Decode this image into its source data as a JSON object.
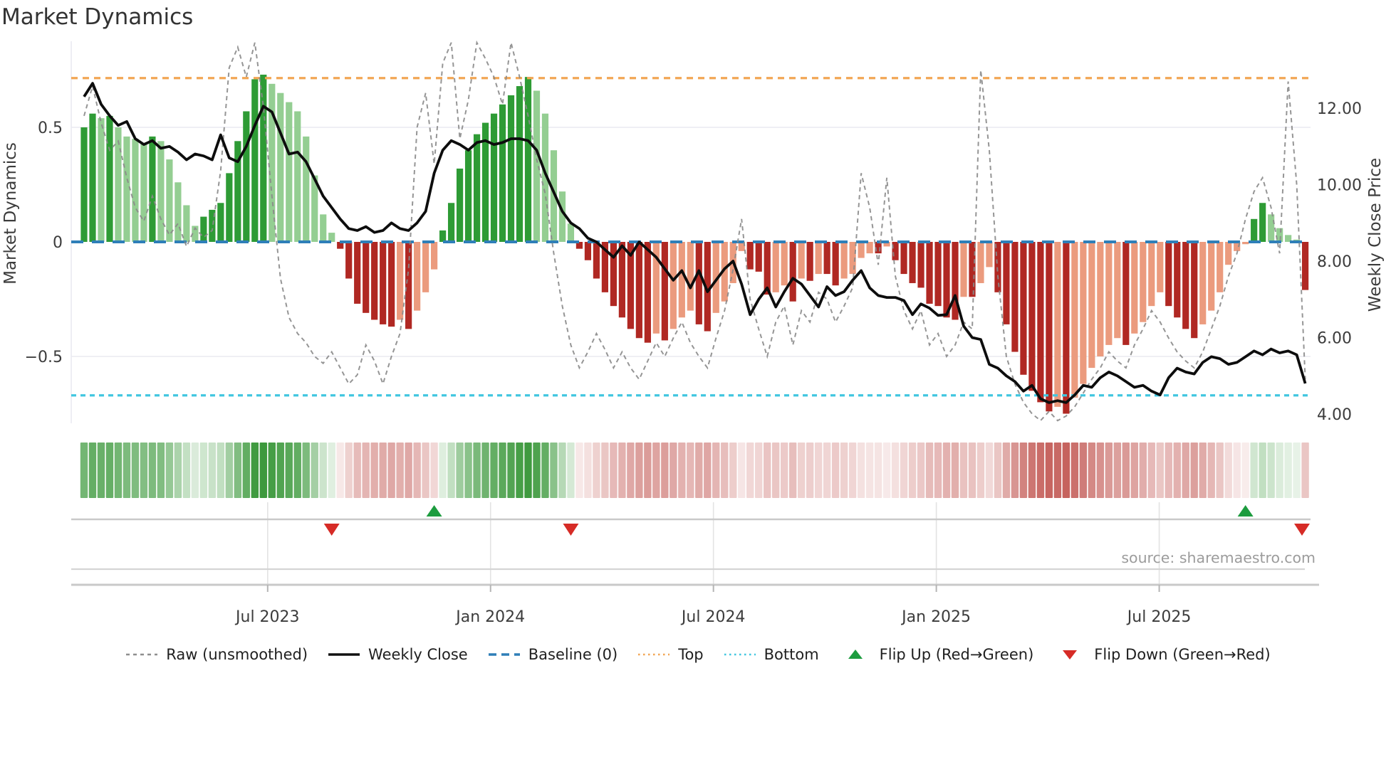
{
  "title": "Market Dynamics",
  "source_text": "source: sharemaestro.com",
  "axes": {
    "left": {
      "label": "Market Dynamics",
      "ticks": [
        {
          "label": "0.5",
          "value": 0.5
        },
        {
          "label": "0",
          "value": 0
        },
        {
          "label": "−0.5",
          "value": -0.5
        }
      ]
    },
    "right": {
      "label": "Weekly Close Price",
      "ticks": [
        {
          "label": "12.00",
          "value": 12
        },
        {
          "label": "10.00",
          "value": 10
        },
        {
          "label": "8.00",
          "value": 8
        },
        {
          "label": "6.00",
          "value": 6
        },
        {
          "label": "4.00",
          "value": 4
        }
      ]
    },
    "x": {
      "ticks": [
        {
          "label": "Jul 2023",
          "week": 21.5
        },
        {
          "label": "Jan 2024",
          "week": 47.6
        },
        {
          "label": "Jul 2024",
          "week": 73.7
        },
        {
          "label": "Jan 2025",
          "week": 99.8
        },
        {
          "label": "Jul 2025",
          "week": 125.9
        }
      ]
    }
  },
  "legend": [
    {
      "label": "Raw (unsmoothed)",
      "swatch": "dashed-line",
      "color": "#8f8f8f"
    },
    {
      "label": "Weekly Close",
      "swatch": "solid-line",
      "color": "#111111"
    },
    {
      "label": "Baseline (0)",
      "swatch": "longdash-line",
      "color": "#2f7fb8"
    },
    {
      "label": "Top",
      "swatch": "dotted-line",
      "color": "#f2a654"
    },
    {
      "label": "Bottom",
      "swatch": "dotted-line",
      "color": "#41c6e0"
    },
    {
      "label": "Flip Up (Red→Green)",
      "swatch": "triangle-up",
      "color": "#1d9c3f"
    },
    {
      "label": "Flip Down (Green→Red)",
      "swatch": "triangle-down",
      "color": "#d62b26"
    }
  ],
  "colors": {
    "bar_pos_strong": "#2e9b35",
    "bar_pos_weak": "#94ce92",
    "bar_neg_strong": "#b02823",
    "bar_neg_weak": "#eb9b7e",
    "close_line": "#0d0d0d",
    "raw_line": "#8a8a8a",
    "baseline": "#2f7fb8",
    "top_line": "#f2a654",
    "bottom_line": "#41c6e0",
    "grid": "#eaeaf1",
    "track": "#c9c9c9",
    "flip_up": "#1d9c3f",
    "flip_down": "#d62b26",
    "title_text": "#333333",
    "source_text": "#9c9c9c"
  },
  "chart_data": {
    "type": "bar",
    "subtype": "combo-oscillator-with-price",
    "title": "Market Dynamics",
    "x_axis": "weekly dates (Feb 2023 – Nov 2025)",
    "x_tick_labels": [
      "Jul 2023",
      "Jan 2024",
      "Jul 2024",
      "Jan 2025",
      "Jul 2025"
    ],
    "left_axis": {
      "label": "Market Dynamics",
      "ticks": [
        0.5,
        0,
        -0.5
      ],
      "range": [
        -0.79,
        0.875
      ]
    },
    "right_axis": {
      "label": "Weekly Close Price",
      "ticks": [
        12,
        10,
        8,
        6,
        4
      ],
      "range": [
        3.05,
        13.75
      ]
    },
    "reference_lines": {
      "baseline": 0,
      "top": 0.715,
      "bottom": -0.67
    },
    "legend_position": "bottom",
    "grid": "horizontal-only",
    "n_weeks": 144,
    "series": [
      {
        "name": "Market Dynamics (smoothed bars)",
        "type": "bar",
        "axis": "left",
        "values": [
          0.5,
          0.56,
          0.54,
          0.55,
          0.5,
          0.46,
          0.45,
          0.43,
          0.46,
          0.44,
          0.36,
          0.26,
          0.16,
          0.07,
          0.11,
          0.14,
          0.17,
          0.3,
          0.44,
          0.57,
          0.71,
          0.73,
          0.69,
          0.65,
          0.61,
          0.57,
          0.46,
          0.29,
          0.12,
          0.04,
          -0.03,
          -0.16,
          -0.27,
          -0.31,
          -0.34,
          -0.36,
          -0.37,
          -0.34,
          -0.38,
          -0.3,
          -0.22,
          -0.12,
          0.05,
          0.17,
          0.32,
          0.4,
          0.47,
          0.52,
          0.56,
          0.6,
          0.64,
          0.68,
          0.72,
          0.66,
          0.56,
          0.4,
          0.22,
          0.08,
          -0.03,
          -0.08,
          -0.16,
          -0.22,
          -0.28,
          -0.33,
          -0.38,
          -0.42,
          -0.44,
          -0.4,
          -0.43,
          -0.38,
          -0.33,
          -0.3,
          -0.36,
          -0.39,
          -0.31,
          -0.26,
          -0.18,
          -0.04,
          -0.12,
          -0.13,
          -0.23,
          -0.22,
          -0.19,
          -0.26,
          -0.16,
          -0.17,
          -0.14,
          -0.14,
          -0.19,
          -0.16,
          -0.14,
          -0.07,
          -0.05,
          -0.05,
          -0.02,
          -0.08,
          -0.14,
          -0.18,
          -0.2,
          -0.27,
          -0.28,
          -0.33,
          -0.34,
          -0.24,
          -0.24,
          -0.18,
          -0.11,
          -0.22,
          -0.36,
          -0.48,
          -0.58,
          -0.65,
          -0.7,
          -0.74,
          -0.72,
          -0.75,
          -0.68,
          -0.62,
          -0.55,
          -0.5,
          -0.45,
          -0.42,
          -0.45,
          -0.4,
          -0.35,
          -0.28,
          -0.22,
          -0.28,
          -0.33,
          -0.38,
          -0.42,
          -0.36,
          -0.3,
          -0.22,
          -0.1,
          -0.04,
          -0.01,
          0.1,
          0.17,
          0.12,
          0.06,
          0.03,
          0.01,
          -0.21
        ]
      },
      {
        "name": "Raw (unsmoothed)",
        "type": "line",
        "style": "dashed",
        "axis": "left",
        "values": [
          0.55,
          0.68,
          0.52,
          0.4,
          0.44,
          0.28,
          0.15,
          0.09,
          0.2,
          0.1,
          0.03,
          0.08,
          -0.02,
          0.06,
          0.02,
          0.05,
          0.31,
          0.76,
          0.85,
          0.72,
          0.87,
          0.59,
          0.2,
          -0.16,
          -0.33,
          -0.4,
          -0.44,
          -0.5,
          -0.53,
          -0.48,
          -0.55,
          -0.62,
          -0.58,
          -0.45,
          -0.52,
          -0.62,
          -0.5,
          -0.4,
          -0.12,
          0.5,
          0.65,
          0.34,
          0.78,
          0.87,
          0.45,
          0.62,
          0.87,
          0.8,
          0.72,
          0.6,
          0.87,
          0.72,
          0.55,
          0.36,
          0.21,
          -0.05,
          -0.28,
          -0.45,
          -0.55,
          -0.48,
          -0.4,
          -0.47,
          -0.55,
          -0.48,
          -0.55,
          -0.6,
          -0.52,
          -0.44,
          -0.5,
          -0.42,
          -0.35,
          -0.44,
          -0.5,
          -0.55,
          -0.42,
          -0.3,
          -0.12,
          0.1,
          -0.25,
          -0.38,
          -0.5,
          -0.35,
          -0.28,
          -0.45,
          -0.3,
          -0.35,
          -0.22,
          -0.25,
          -0.35,
          -0.28,
          -0.2,
          0.3,
          0.15,
          -0.1,
          0.28,
          -0.15,
          -0.3,
          -0.38,
          -0.3,
          -0.45,
          -0.4,
          -0.5,
          -0.45,
          -0.35,
          -0.38,
          0.75,
          0.4,
          -0.15,
          -0.5,
          -0.62,
          -0.7,
          -0.75,
          -0.78,
          -0.74,
          -0.78,
          -0.76,
          -0.72,
          -0.66,
          -0.6,
          -0.55,
          -0.48,
          -0.52,
          -0.55,
          -0.45,
          -0.38,
          -0.3,
          -0.35,
          -0.42,
          -0.48,
          -0.52,
          -0.55,
          -0.48,
          -0.38,
          -0.28,
          -0.15,
          -0.05,
          0.1,
          0.22,
          0.28,
          0.15,
          -0.05,
          0.7,
          0.25,
          -0.6
        ]
      },
      {
        "name": "Weekly Close",
        "type": "line",
        "style": "solid",
        "axis": "right",
        "values": [
          12.3,
          12.65,
          12.1,
          11.8,
          11.55,
          11.65,
          11.2,
          11.05,
          11.15,
          10.95,
          11.0,
          10.85,
          10.65,
          10.8,
          10.75,
          10.65,
          11.3,
          10.7,
          10.6,
          11.0,
          11.55,
          12.05,
          11.9,
          11.35,
          10.8,
          10.85,
          10.6,
          10.15,
          9.7,
          9.4,
          9.1,
          8.85,
          8.8,
          8.9,
          8.75,
          8.8,
          9.0,
          8.85,
          8.8,
          9.0,
          9.3,
          10.3,
          10.9,
          11.15,
          11.05,
          10.9,
          11.1,
          11.15,
          11.05,
          11.1,
          11.2,
          11.2,
          11.15,
          10.9,
          10.3,
          9.8,
          9.3,
          9.0,
          8.85,
          8.6,
          8.5,
          8.3,
          8.1,
          8.4,
          8.15,
          8.5,
          8.3,
          8.1,
          7.8,
          7.5,
          7.75,
          7.3,
          7.75,
          7.2,
          7.5,
          7.8,
          8.0,
          7.4,
          6.6,
          7.0,
          7.3,
          6.8,
          7.2,
          7.55,
          7.4,
          7.1,
          6.8,
          7.33,
          7.1,
          7.2,
          7.5,
          7.75,
          7.3,
          7.1,
          7.05,
          7.05,
          6.97,
          6.6,
          6.88,
          6.77,
          6.58,
          6.6,
          7.1,
          6.3,
          6.0,
          5.95,
          5.3,
          5.2,
          5.0,
          4.85,
          4.6,
          4.75,
          4.4,
          4.3,
          4.35,
          4.3,
          4.5,
          4.75,
          4.7,
          4.95,
          5.1,
          5.0,
          4.85,
          4.7,
          4.75,
          4.6,
          4.5,
          4.95,
          5.2,
          5.1,
          5.05,
          5.35,
          5.5,
          5.45,
          5.3,
          5.35,
          5.5,
          5.65,
          5.55,
          5.7,
          5.6,
          5.65,
          5.55,
          4.8
        ]
      }
    ],
    "heatmap_strip": "color intensity of each weekly cell derived from bar values (green positive, red negative)",
    "flip_up_weeks": [
      41,
      136
    ],
    "flip_down_weeks": [
      29,
      57,
      143
    ]
  }
}
